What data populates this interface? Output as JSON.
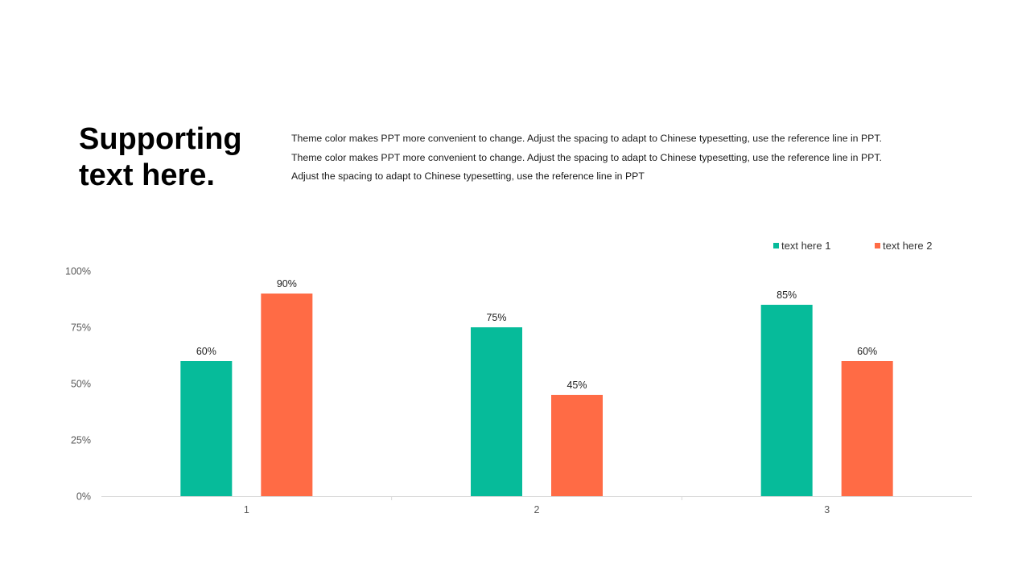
{
  "slide": {
    "headline_line1": "Supporting",
    "headline_line2": "text here.",
    "body_lines": [
      "Theme color makes PPT more convenient to change. Adjust the spacing to adapt to Chinese typesetting, use the reference line in PPT.",
      "Theme color makes PPT more convenient to change. Adjust the spacing to adapt to Chinese typesetting, use the reference line in PPT.",
      "Adjust the spacing to adapt to Chinese typesetting, use the reference line in PPT"
    ]
  },
  "chart_data": {
    "type": "bar",
    "categories": [
      "1",
      "2",
      "3"
    ],
    "series": [
      {
        "name": "text here 1",
        "values": [
          60,
          75,
          85
        ],
        "color": "#06BB9A"
      },
      {
        "name": "text here 2",
        "values": [
          90,
          45,
          60
        ],
        "color": "#FF6B45"
      }
    ],
    "ylim": [
      0,
      100
    ],
    "yticks": [
      "0%",
      "25%",
      "50%",
      "75%",
      "100%"
    ],
    "ytick_values": [
      0,
      25,
      50,
      75,
      100
    ],
    "data_labels": [
      [
        "60%",
        "75%",
        "85%"
      ],
      [
        "90%",
        "45%",
        "60%"
      ]
    ],
    "legend_position": "top-right",
    "grid": false,
    "title": "",
    "xlabel": "",
    "ylabel": ""
  }
}
